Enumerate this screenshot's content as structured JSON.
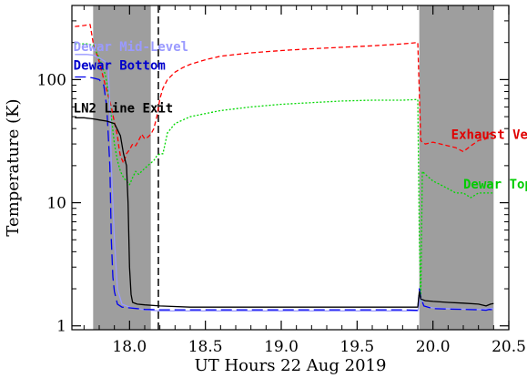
{
  "chart_data": {
    "type": "line",
    "xlabel": "UT Hours 22 Aug 2019",
    "ylabel": "Temperature (K)",
    "xlim": [
      17.62,
      20.5
    ],
    "ylim": [
      0.93,
      400
    ],
    "y_scale": "log",
    "x_ticks": [
      18.0,
      18.5,
      19.0,
      19.5,
      20.0,
      20.5
    ],
    "x_tick_labels": [
      "18.0",
      "18.5",
      "19.0",
      "19.5",
      "20.0",
      "20.5"
    ],
    "y_ticks": [
      1,
      10,
      100
    ],
    "y_tick_labels": [
      "1",
      "10",
      "100"
    ],
    "grid": false,
    "legend": "none",
    "shaded_regions": [
      {
        "x0": 17.76,
        "x1": 18.14,
        "color": "#9e9e9e"
      },
      {
        "x0": 19.91,
        "x1": 20.4,
        "color": "#9e9e9e"
      }
    ],
    "vertical_lines": [
      {
        "x": 18.19,
        "style": "dashed",
        "color": "#000000"
      }
    ],
    "annotations": [
      {
        "text": "Dewar Mid-Level",
        "color": "#9a9aff",
        "x": 17.63,
        "y": 170
      },
      {
        "text": "Dewar Bottom",
        "color": "#0000cc",
        "x": 17.63,
        "y": 120
      },
      {
        "text": "LN2 Line Exit",
        "color": "#000000",
        "x": 17.63,
        "y": 54
      },
      {
        "text": "Exhaust Vent",
        "color": "#e00000",
        "x": 20.12,
        "y": 33
      },
      {
        "text": "Dewar Top",
        "color": "#00cc00",
        "x": 20.2,
        "y": 13
      }
    ],
    "series": [
      {
        "name": "Exhaust Vent",
        "color": "#ff0000",
        "dash": "5,3",
        "x": [
          17.64,
          17.7,
          17.74,
          17.76,
          17.8,
          17.84,
          17.88,
          17.9,
          17.92,
          17.93,
          17.94,
          17.96,
          17.98,
          18.0,
          18.02,
          18.04,
          18.06,
          18.08,
          18.1,
          18.12,
          18.14,
          18.16,
          18.18,
          18.2,
          18.22,
          18.25,
          18.3,
          18.35,
          18.4,
          18.5,
          18.6,
          18.8,
          19.0,
          19.2,
          19.4,
          19.6,
          19.8,
          19.9,
          19.92,
          19.93,
          19.95,
          20.0,
          20.05,
          20.1,
          20.15,
          20.2,
          20.25,
          20.3,
          20.35,
          20.37,
          20.4
        ],
        "y": [
          270,
          275,
          280,
          200,
          140,
          90,
          60,
          45,
          35,
          28,
          24,
          21,
          25,
          27,
          30,
          29,
          32,
          36,
          33,
          34,
          36,
          40,
          50,
          70,
          85,
          100,
          115,
          125,
          133,
          145,
          155,
          165,
          172,
          178,
          183,
          188,
          195,
          200,
          32,
          31,
          30,
          31,
          30,
          29,
          28,
          26,
          29,
          32,
          33,
          36,
          38
        ]
      },
      {
        "name": "Dewar Top",
        "color": "#00d800",
        "dash": "2,2",
        "x": [
          17.64,
          17.72,
          17.76,
          17.8,
          17.84,
          17.86,
          17.88,
          17.9,
          17.92,
          17.94,
          17.96,
          17.98,
          18.0,
          18.02,
          18.04,
          18.06,
          18.08,
          18.1,
          18.12,
          18.14,
          18.16,
          18.18,
          18.2,
          18.22,
          18.25,
          18.3,
          18.4,
          18.5,
          18.6,
          18.8,
          19.0,
          19.2,
          19.4,
          19.6,
          19.8,
          19.9,
          19.91,
          19.92,
          19.93,
          19.95,
          20.0,
          20.05,
          20.1,
          20.15,
          20.2,
          20.25,
          20.3,
          20.35,
          20.4
        ],
        "y": [
          195,
          195,
          190,
          150,
          110,
          80,
          50,
          30,
          22,
          18,
          16,
          15,
          14,
          16,
          18,
          17,
          18,
          19,
          20,
          21,
          22,
          24,
          25,
          25,
          37,
          44,
          50,
          53,
          56,
          60,
          63,
          65,
          67,
          68,
          68,
          69,
          5,
          1.6,
          18,
          17,
          15,
          14,
          13,
          12,
          12,
          11,
          12,
          12,
          12
        ]
      },
      {
        "name": "Dewar Mid-Level",
        "color": "#9a9aff",
        "dash": "",
        "x": [
          17.64,
          17.72,
          17.76,
          17.8,
          17.84,
          17.86,
          17.87,
          17.88,
          17.9,
          17.92,
          17.95,
          18.0,
          18.05,
          18.1,
          18.2,
          18.4,
          18.6,
          18.8,
          19.0,
          19.2,
          19.4,
          19.6,
          19.8,
          19.9,
          19.92,
          19.94,
          20.0,
          20.1,
          20.2,
          20.3,
          20.4
        ],
        "y": [
          160,
          160,
          158,
          150,
          140,
          120,
          60,
          20,
          5,
          2,
          1.5,
          1.42,
          1.38,
          1.35,
          1.32,
          1.32,
          1.32,
          1.32,
          1.32,
          1.32,
          1.32,
          1.32,
          1.32,
          1.32,
          1.7,
          1.45,
          1.4,
          1.38,
          1.37,
          1.36,
          1.38
        ]
      },
      {
        "name": "Dewar Bottom",
        "color": "#0000ee",
        "dash": "12,5",
        "x": [
          17.64,
          17.72,
          17.76,
          17.8,
          17.83,
          17.85,
          17.87,
          17.88,
          17.89,
          17.9,
          17.92,
          17.95,
          18.0,
          18.05,
          18.1,
          18.2,
          18.4,
          18.6,
          18.8,
          19.0,
          19.2,
          19.4,
          19.6,
          19.8,
          19.9,
          19.91,
          19.92,
          19.94,
          20.0,
          20.1,
          20.2,
          20.3,
          20.35,
          20.37,
          20.4
        ],
        "y": [
          105,
          105,
          103,
          100,
          90,
          60,
          20,
          5,
          2.5,
          1.9,
          1.5,
          1.42,
          1.4,
          1.38,
          1.36,
          1.35,
          1.35,
          1.35,
          1.35,
          1.35,
          1.35,
          1.35,
          1.35,
          1.35,
          1.34,
          2.0,
          1.7,
          1.45,
          1.38,
          1.37,
          1.36,
          1.35,
          1.34,
          1.36,
          1.35
        ]
      },
      {
        "name": "LN2 Line Exit",
        "color": "#000000",
        "dash": "",
        "x": [
          17.64,
          17.7,
          17.76,
          17.8,
          17.85,
          17.9,
          17.94,
          17.96,
          17.98,
          17.99,
          18.0,
          18.01,
          18.02,
          18.05,
          18.1,
          18.2,
          18.4,
          18.6,
          18.8,
          19.0,
          19.2,
          19.4,
          19.6,
          19.8,
          19.9,
          19.91,
          19.92,
          19.95,
          20.0,
          20.1,
          20.2,
          20.3,
          20.35,
          20.38,
          20.4
        ],
        "y": [
          49,
          49,
          48,
          47,
          46,
          44,
          35,
          25,
          20,
          10,
          3,
          1.8,
          1.55,
          1.5,
          1.48,
          1.45,
          1.42,
          1.42,
          1.42,
          1.42,
          1.42,
          1.42,
          1.42,
          1.42,
          1.42,
          1.9,
          1.65,
          1.6,
          1.58,
          1.55,
          1.53,
          1.5,
          1.45,
          1.5,
          1.52
        ]
      }
    ]
  }
}
